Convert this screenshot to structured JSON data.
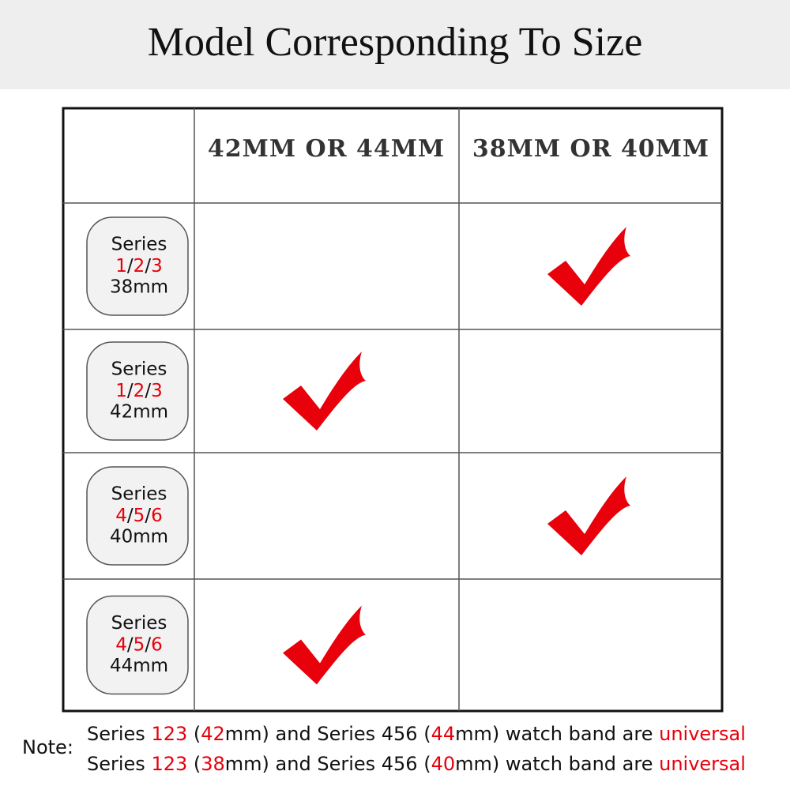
{
  "header": {
    "title": "Model Corresponding To Size"
  },
  "accent_color": "#e8000b",
  "table": {
    "columns": [
      "42MM OR 44MM",
      "38MM OR 40MM"
    ],
    "rows": [
      {
        "name": "Series",
        "versions": [
          "1",
          "2",
          "3"
        ],
        "separator": "/",
        "size": "38mm",
        "checks": [
          false,
          true
        ]
      },
      {
        "name": "Series",
        "versions": [
          "1",
          "2",
          "3"
        ],
        "separator": "/",
        "size": "42mm",
        "checks": [
          true,
          false
        ]
      },
      {
        "name": "Series",
        "versions": [
          "4",
          "5",
          "6"
        ],
        "separator": "/",
        "size": "40mm",
        "checks": [
          false,
          true
        ]
      },
      {
        "name": "Series",
        "versions": [
          "4",
          "5",
          "6"
        ],
        "separator": "/",
        "size": "44mm",
        "checks": [
          true,
          false
        ]
      }
    ]
  },
  "note": {
    "label": "Note:",
    "lines": [
      [
        {
          "text": "Series ",
          "highlight": false
        },
        {
          "text": "123",
          "highlight": true
        },
        {
          "text": " (",
          "highlight": false
        },
        {
          "text": "42",
          "highlight": true
        },
        {
          "text": "mm) and Series 456 (",
          "highlight": false
        },
        {
          "text": "44",
          "highlight": true
        },
        {
          "text": "mm) watch band are ",
          "highlight": false
        },
        {
          "text": "universal",
          "highlight": true
        }
      ],
      [
        {
          "text": "Series ",
          "highlight": false
        },
        {
          "text": "123",
          "highlight": true
        },
        {
          "text": " (",
          "highlight": false
        },
        {
          "text": "38",
          "highlight": true
        },
        {
          "text": "mm) and Series 456 (",
          "highlight": false
        },
        {
          "text": "40",
          "highlight": true
        },
        {
          "text": "mm) watch band are ",
          "highlight": false
        },
        {
          "text": "universal",
          "highlight": true
        }
      ]
    ]
  }
}
